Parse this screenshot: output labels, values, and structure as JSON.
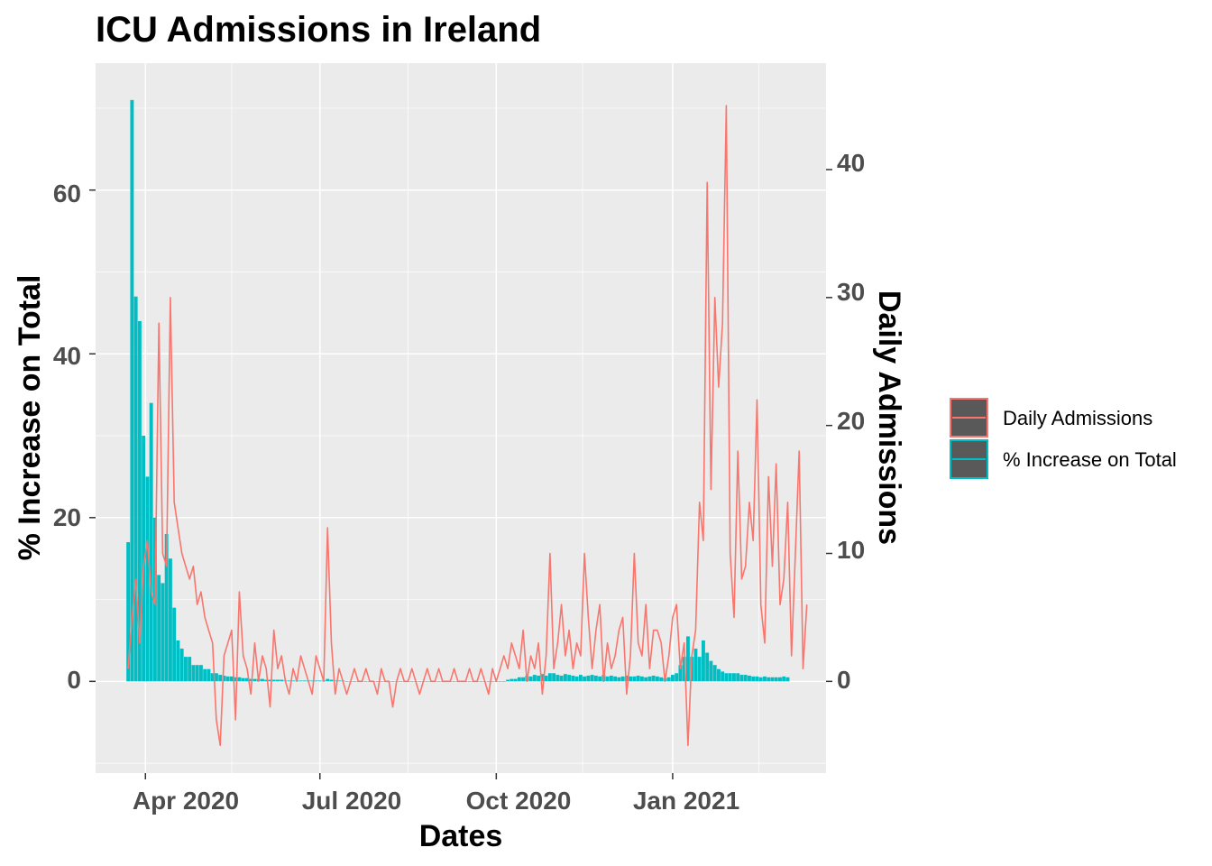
{
  "chart_data": {
    "type": "bar+line",
    "title": "ICU Admissions in Ireland",
    "xlabel": "Dates",
    "ylabel_left": "% Increase on Total",
    "ylabel_right": "Daily Admissions",
    "x_ticks": [
      "Apr 2020",
      "Jul 2020",
      "Oct 2020",
      "Jan 2021"
    ],
    "y_left_ticks": [
      "0",
      "20",
      "40",
      "60"
    ],
    "y_right_ticks": [
      "0",
      "10",
      "20",
      "30",
      "40"
    ],
    "ylim_left": [
      -11.2,
      75.5
    ],
    "xlim": [
      "2020-03-06",
      "2021-03-22"
    ],
    "legend_position": "right",
    "colors": {
      "daily": "#F8766D",
      "pct": "#00BFC4",
      "panel": "#EBEBEB",
      "grid": "#FFFFFF"
    },
    "legend": [
      {
        "label": "Daily Admissions",
        "color": "#F8766D"
      },
      {
        "label": "% Increase on Total",
        "color": "#00BFC4"
      }
    ],
    "series": [
      {
        "name": "Daily Admissions",
        "kind": "line",
        "axis": "right",
        "x_start": "2020-03-23",
        "x_step_days": 2,
        "values": [
          1,
          5,
          8,
          3,
          9,
          11,
          7,
          6,
          28,
          10,
          9,
          30,
          14,
          12,
          10,
          9,
          8,
          9,
          6,
          7,
          5,
          4,
          3,
          -3,
          -5,
          2,
          3,
          4,
          -3,
          7,
          2,
          1,
          -1,
          3,
          0,
          2,
          1,
          -2,
          4,
          1,
          2,
          0,
          -1,
          1,
          0,
          2,
          1,
          0,
          -1,
          2,
          1,
          0,
          12,
          3,
          -1,
          1,
          0,
          -1,
          0,
          1,
          0,
          0,
          1,
          0,
          0,
          -1,
          1,
          0,
          0,
          -2,
          0,
          1,
          0,
          0,
          1,
          0,
          -1,
          0,
          1,
          0,
          0,
          1,
          0,
          0,
          0,
          1,
          0,
          0,
          0,
          1,
          0,
          0,
          1,
          0,
          -1,
          1,
          0,
          1,
          2,
          1,
          3,
          2,
          1,
          4,
          0,
          2,
          1,
          3,
          -1,
          2,
          10,
          1,
          3,
          6,
          2,
          4,
          1,
          3,
          2,
          10,
          5,
          1,
          4,
          6,
          0,
          3,
          1,
          2,
          4,
          5,
          -1,
          2,
          10,
          3,
          2,
          6,
          1,
          4,
          4,
          3,
          0,
          2,
          5,
          6,
          1,
          3,
          -5,
          2,
          4,
          14,
          11,
          39,
          15,
          30,
          23,
          28,
          45,
          10,
          5,
          18,
          8,
          9,
          14,
          11,
          22,
          6,
          3,
          16,
          9,
          17,
          6,
          8,
          14,
          2,
          10,
          18,
          1,
          6
        ]
      },
      {
        "name": "% Increase on Total",
        "kind": "bar",
        "axis": "left",
        "x_start": "2020-03-23",
        "x_step_days": 2,
        "values": [
          17,
          71,
          47,
          44,
          30,
          25,
          34,
          20,
          13,
          12,
          18,
          15,
          9,
          5,
          4,
          3,
          3,
          2,
          2,
          2,
          1.5,
          1.5,
          1,
          1,
          0.8,
          0.7,
          0.6,
          0.6,
          0.5,
          0.5,
          0.4,
          0.4,
          0.3,
          0.3,
          0.3,
          0.3,
          0.2,
          0.2,
          0.2,
          0.2,
          0.2,
          0.1,
          0.1,
          0.1,
          0.1,
          0.1,
          0.1,
          0.1,
          0.1,
          0.1,
          0.1,
          0.1,
          0.3,
          0.2,
          0.1,
          0.1,
          0.1,
          0,
          0,
          0,
          0,
          0,
          0,
          0,
          0,
          0,
          0,
          0,
          0,
          0,
          0,
          0,
          0,
          0,
          0,
          0,
          0,
          0,
          0,
          0,
          0,
          0,
          0,
          0,
          0,
          0,
          0,
          0,
          0,
          0,
          0,
          0,
          0,
          0,
          0,
          0,
          0,
          0,
          0,
          0.2,
          0.3,
          0.3,
          0.5,
          0.5,
          0.7,
          0.6,
          0.8,
          0.7,
          0.9,
          0.7,
          1,
          1,
          0.8,
          0.7,
          0.9,
          0.8,
          0.7,
          0.6,
          0.8,
          0.6,
          0.7,
          0.8,
          0.7,
          0.6,
          0.8,
          0.6,
          0.7,
          0.6,
          0.5,
          0.6,
          0.7,
          0.6,
          0.6,
          0.7,
          0.6,
          0.5,
          0.6,
          0.7,
          0.6,
          0.5,
          0.4,
          0.5,
          0.8,
          1,
          2,
          3,
          5.5,
          3,
          4,
          3,
          5,
          3.5,
          2.5,
          2,
          1.5,
          1.2,
          1,
          1,
          1,
          1,
          0.8,
          0.8,
          0.7,
          0.6,
          0.6,
          0.5,
          0.6,
          0.5,
          0.5,
          0.5,
          0.5,
          0.6,
          0.5
        ]
      }
    ]
  }
}
